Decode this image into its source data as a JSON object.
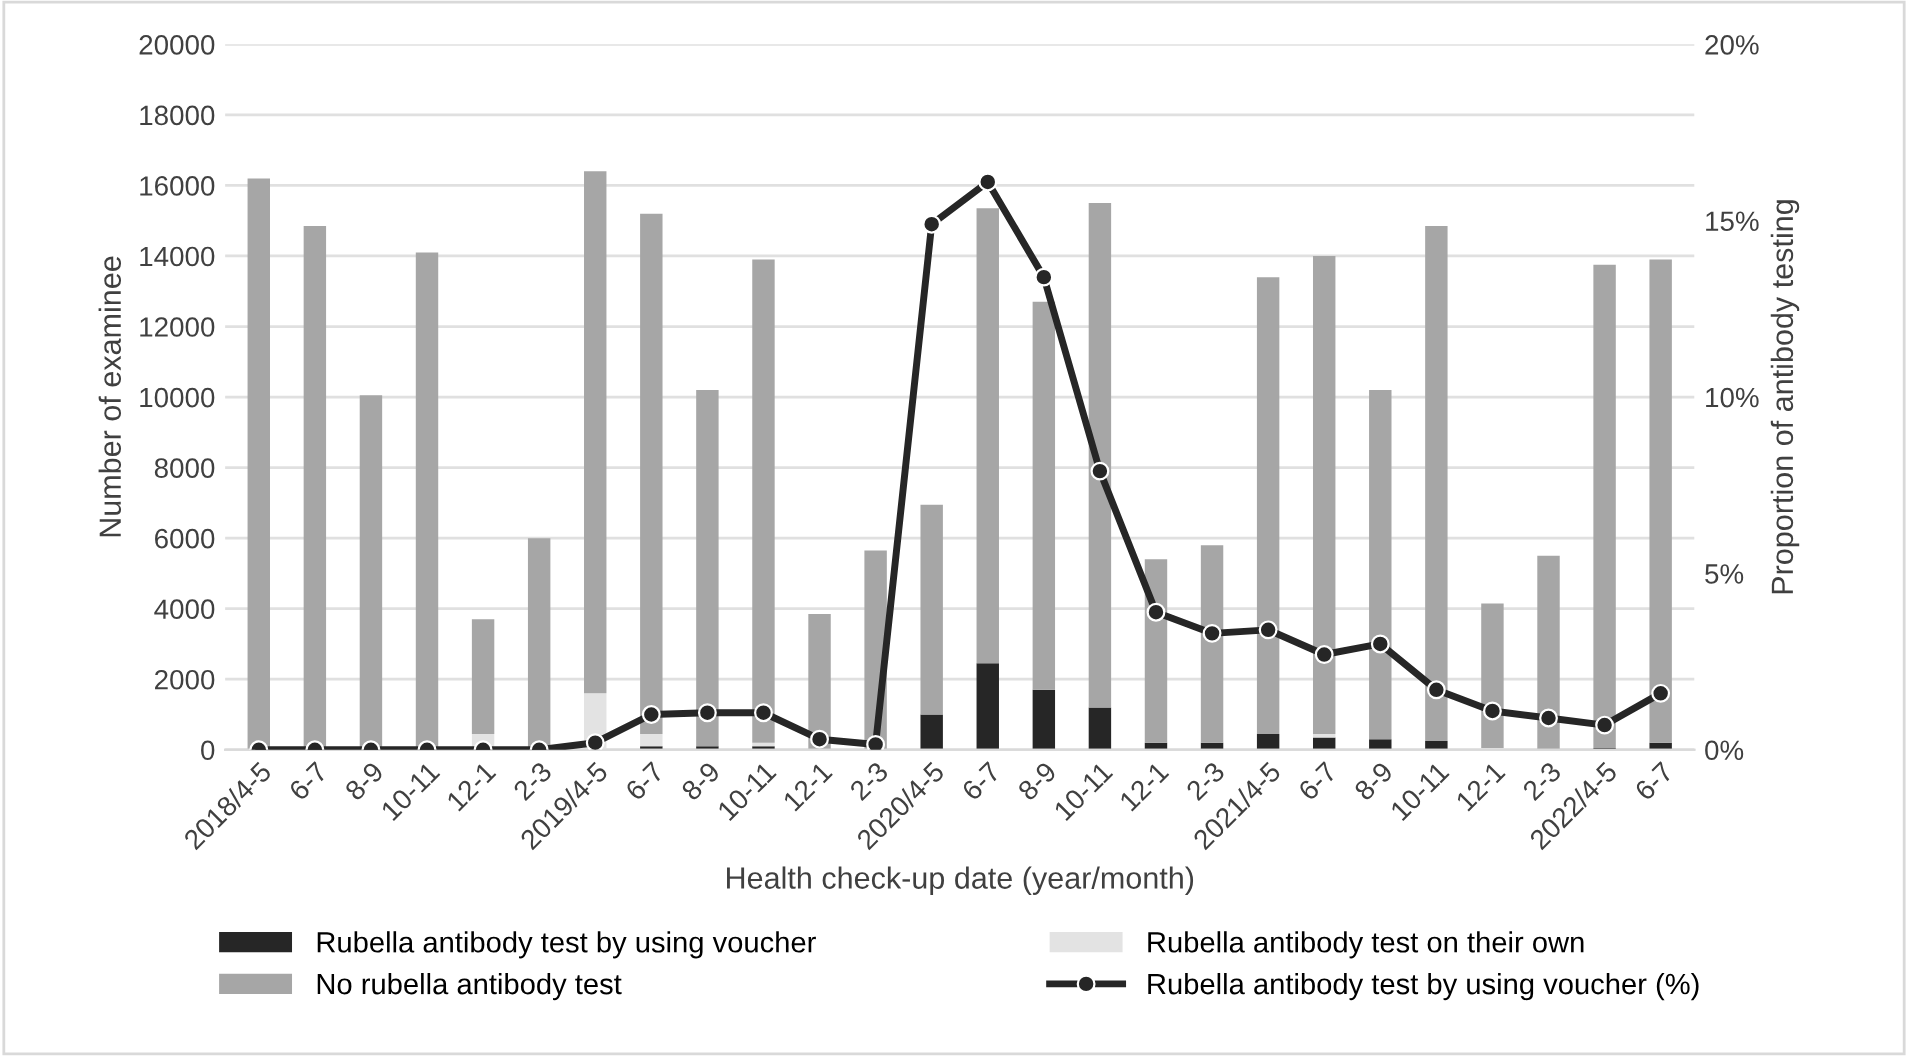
{
  "chart_data": {
    "type": "bar",
    "stacked": true,
    "xlabel": "Health check-up date (year/month)",
    "ylabel": "Number of examinee",
    "y2label": "Proportion of antibody testing",
    "categories": [
      "2018/4-5",
      "6-7",
      "8-9",
      "10-11",
      "12-1",
      "2-3",
      "2019/4-5",
      "6-7",
      "8-9",
      "10-11",
      "12-1",
      "2-3",
      "2020/4-5",
      "6-7",
      "8-9",
      "10-11",
      "12-1",
      "2-3",
      "2021/4-5",
      "6-7",
      "8-9",
      "10-11",
      "12-1",
      "2-3",
      "2022/4-5",
      "6-7"
    ],
    "series": [
      {
        "name": "Rubella antibody test by using voucher",
        "color": "#262626",
        "values": [
          0,
          0,
          0,
          0,
          0,
          0,
          0,
          100,
          100,
          100,
          0,
          0,
          1000,
          2450,
          1700,
          1200,
          200,
          200,
          450,
          350,
          300,
          250,
          0,
          0,
          50,
          200
        ]
      },
      {
        "name": "Rubella antibody test on their own",
        "color": "#e3e3e3",
        "values": [
          0,
          0,
          0,
          0,
          450,
          0,
          1600,
          350,
          0,
          100,
          0,
          0,
          0,
          0,
          0,
          0,
          0,
          0,
          0,
          100,
          0,
          0,
          50,
          0,
          0,
          0
        ]
      },
      {
        "name": "No rubella antibody test",
        "color": "#a6a6a6",
        "values": [
          16200,
          14850,
          10050,
          14100,
          3250,
          6000,
          14800,
          14750,
          10100,
          13700,
          3850,
          5650,
          5950,
          12900,
          11000,
          14300,
          5200,
          5600,
          12950,
          13550,
          9900,
          14600,
          4100,
          5500,
          13700,
          13700
        ]
      },
      {
        "name": "Rubella antibody test by using voucher (%)",
        "type": "line",
        "axis": "y2",
        "color": "#262626",
        "marker": "circle",
        "values": [
          0,
          0,
          0,
          0,
          0,
          0,
          0.2,
          1.0,
          1.05,
          1.05,
          0.3,
          0.15,
          14.9,
          16.1,
          13.4,
          7.9,
          3.9,
          3.3,
          3.4,
          2.7,
          3.0,
          1.7,
          1.1,
          0.9,
          0.7,
          1.6
        ]
      }
    ],
    "ylim": [
      0,
      20000
    ],
    "yticks": [
      0,
      2000,
      4000,
      6000,
      8000,
      10000,
      12000,
      14000,
      16000,
      18000,
      20000
    ],
    "y2lim": [
      0,
      20
    ],
    "y2ticks": [
      {
        "value": 0,
        "label": "0%"
      },
      {
        "value": 5,
        "label": "5%"
      },
      {
        "value": 10,
        "label": "10%"
      },
      {
        "value": 15,
        "label": "15%"
      },
      {
        "value": 20,
        "label": "20%"
      }
    ],
    "grid": "y",
    "legend": "bottom"
  }
}
